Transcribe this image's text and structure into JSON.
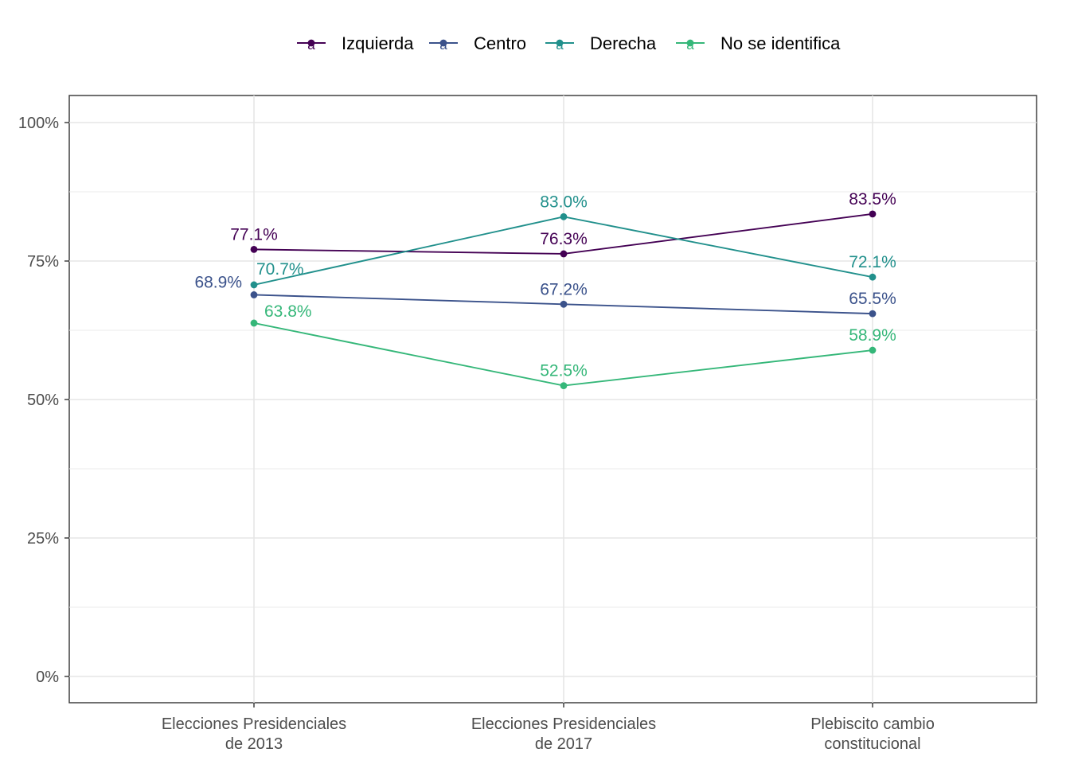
{
  "chart_data": {
    "type": "line",
    "categories": [
      [
        "Elecciones Presidenciales",
        "de 2013"
      ],
      [
        "Elecciones Presidenciales",
        "de 2017"
      ],
      [
        "Plebiscito cambio",
        "constitucional"
      ]
    ],
    "ylim": [
      0,
      100
    ],
    "yticks": [
      0,
      25,
      50,
      75,
      100
    ],
    "ytick_labels": [
      "0%",
      "25%",
      "50%",
      "75%",
      "100%"
    ],
    "grid": true,
    "legend_position": "top",
    "legend_glyph": "a",
    "series": [
      {
        "name": "Izquierda",
        "color": "#440154",
        "values": [
          77.1,
          76.3,
          83.5
        ],
        "labels": [
          "77.1%",
          "76.3%",
          "83.5%"
        ]
      },
      {
        "name": "Centro",
        "color": "#3B528B",
        "values": [
          68.9,
          67.2,
          65.5
        ],
        "labels": [
          "68.9%",
          "67.2%",
          "65.5%"
        ]
      },
      {
        "name": "Derecha",
        "color": "#21908C",
        "values": [
          70.7,
          83.0,
          72.1
        ],
        "labels": [
          "70.7%",
          "83.0%",
          "72.1%"
        ]
      },
      {
        "name": "No se identifica",
        "color": "#35B779",
        "values": [
          63.8,
          52.5,
          58.9
        ],
        "labels": [
          "63.8%",
          "52.5%",
          "58.9%"
        ]
      }
    ]
  }
}
